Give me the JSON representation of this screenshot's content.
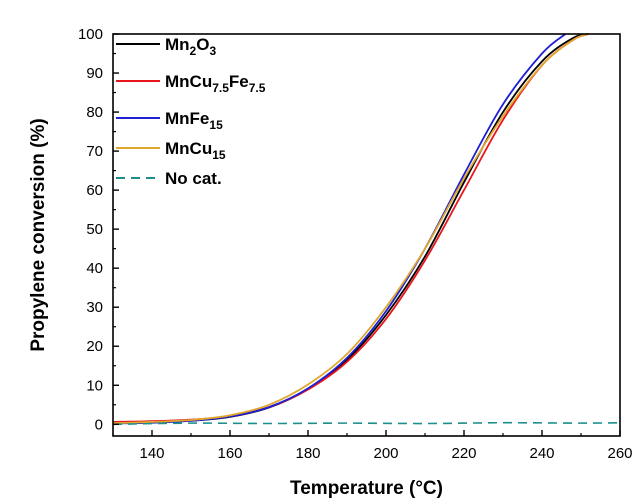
{
  "chart_data": {
    "type": "line",
    "title": "",
    "xlabel": "Temperature (°C)",
    "ylabel": "Propylene conversion (%)",
    "xlim": [
      130,
      260
    ],
    "ylim": [
      -3,
      100
    ],
    "xticks": [
      "140",
      "160",
      "180",
      "200",
      "220",
      "240",
      "260"
    ],
    "yticks": [
      "0",
      "10",
      "20",
      "30",
      "40",
      "50",
      "60",
      "70",
      "80",
      "90",
      "100"
    ],
    "grid": false,
    "legend_position": "top-left",
    "series": [
      {
        "name": "Mn2O3",
        "name_parts": [
          [
            "Mn",
            ""
          ],
          [
            "2",
            "sub"
          ],
          [
            "O",
            ""
          ],
          [
            "3",
            "sub"
          ]
        ],
        "color": "#000000",
        "dash": "solid",
        "points": [
          [
            130,
            0.3
          ],
          [
            140,
            0.5
          ],
          [
            150,
            0.9
          ],
          [
            160,
            1.9
          ],
          [
            170,
            4.3
          ],
          [
            180,
            9
          ],
          [
            190,
            16.5
          ],
          [
            200,
            28
          ],
          [
            210,
            43
          ],
          [
            220,
            62
          ],
          [
            230,
            80
          ],
          [
            240,
            93
          ],
          [
            248,
            99
          ],
          [
            252,
            100
          ]
        ]
      },
      {
        "name": "MnCu7.5Fe7.5",
        "name_parts": [
          [
            "MnCu",
            ""
          ],
          [
            "7.5",
            "sub"
          ],
          [
            "Fe",
            ""
          ],
          [
            "7.5",
            "sub"
          ]
        ],
        "color": "#e8161b",
        "dash": "solid",
        "points": [
          [
            130,
            0.6
          ],
          [
            140,
            0.8
          ],
          [
            150,
            1.2
          ],
          [
            160,
            2.1
          ],
          [
            170,
            4.4
          ],
          [
            180,
            8.9
          ],
          [
            190,
            16
          ],
          [
            200,
            27
          ],
          [
            210,
            42
          ],
          [
            220,
            60
          ],
          [
            230,
            78
          ],
          [
            240,
            92
          ],
          [
            248,
            98.5
          ],
          [
            252,
            100
          ]
        ]
      },
      {
        "name": "MnFe15",
        "name_parts": [
          [
            "MnFe",
            ""
          ],
          [
            "15",
            "sub"
          ]
        ],
        "color": "#1f1fd6",
        "dash": "solid",
        "points": [
          [
            130,
            0.2
          ],
          [
            140,
            0.4
          ],
          [
            150,
            0.9
          ],
          [
            160,
            2
          ],
          [
            170,
            4.4
          ],
          [
            180,
            9.2
          ],
          [
            190,
            17
          ],
          [
            200,
            29
          ],
          [
            210,
            45
          ],
          [
            220,
            64
          ],
          [
            230,
            82
          ],
          [
            240,
            95
          ],
          [
            246,
            100
          ]
        ]
      },
      {
        "name": "MnCu15",
        "name_parts": [
          [
            "MnCu",
            ""
          ],
          [
            "15",
            "sub"
          ]
        ],
        "color": "#e0a72e",
        "dash": "solid",
        "points": [
          [
            130,
            0.3
          ],
          [
            140,
            0.6
          ],
          [
            150,
            1.1
          ],
          [
            160,
            2.3
          ],
          [
            170,
            5
          ],
          [
            180,
            10.2
          ],
          [
            190,
            18
          ],
          [
            200,
            30
          ],
          [
            210,
            45
          ],
          [
            220,
            63
          ],
          [
            230,
            79
          ],
          [
            240,
            92
          ],
          [
            248,
            98.5
          ],
          [
            252,
            100
          ]
        ]
      },
      {
        "name": "No cat.",
        "name_parts": [
          [
            "No cat.",
            ""
          ]
        ],
        "color": "#1b8e8e",
        "dash": "dashed",
        "points": [
          [
            130,
            0
          ],
          [
            150,
            0.3
          ],
          [
            170,
            0.2
          ],
          [
            190,
            0.3
          ],
          [
            210,
            0.2
          ],
          [
            230,
            0.4
          ],
          [
            250,
            0.3
          ],
          [
            260,
            0.4
          ]
        ]
      }
    ]
  }
}
